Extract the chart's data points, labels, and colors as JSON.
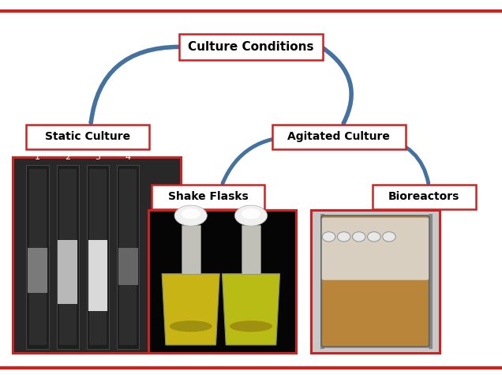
{
  "title": "Culture Conditions",
  "static_label": "Static Culture",
  "agitated_label": "Agitated Culture",
  "shake_flasks_label": "Shake Flasks",
  "bioreactors_label": "Bioreactors",
  "bg_color": "#ffffff",
  "box_edge_color": "#cc2222",
  "arrow_color": "#4472a0",
  "text_color": "#000000",
  "top_border_color": "#cc2222",
  "bottom_border_color": "#cc2222",
  "figw": 6.36,
  "figh": 4.75,
  "dpi": 100
}
